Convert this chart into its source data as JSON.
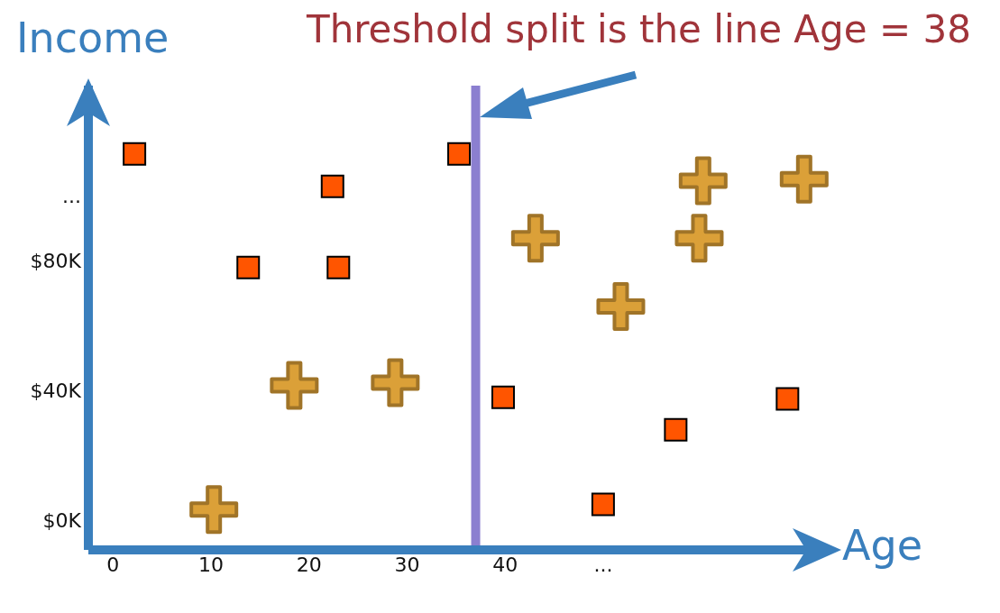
{
  "chart_data": {
    "type": "scatter",
    "title": "Threshold split is the line Age = 38",
    "xlabel": "Age",
    "ylabel": "Income",
    "xlim": [
      -2.5,
      73
    ],
    "xticks": [
      0,
      10,
      20,
      30,
      40,
      {
        "value": 50,
        "label": "..."
      }
    ],
    "ylim": [
      -9,
      134
    ],
    "yticks": [
      {
        "value": 0,
        "label": "$0K"
      },
      {
        "value": 40,
        "label": "$40K"
      },
      {
        "value": 80,
        "label": "$80K"
      },
      {
        "value": 100,
        "label": "..."
      }
    ],
    "grid": false,
    "legend": false,
    "ref_lines": [
      {
        "axis": "x",
        "value": 37,
        "color": "#8b7fd0"
      }
    ],
    "series": [
      {
        "color": "#ff5500",
        "marker": "square",
        "x": [
          2.2,
          22.4,
          13.8,
          23.0,
          35.3,
          39.8,
          57.4,
          68.8,
          50.0
        ],
        "values": [
          113,
          103,
          78,
          78,
          113,
          38,
          28,
          37.5,
          5
        ]
      },
      {
        "color": "#dba038",
        "marker": "cross",
        "x": [
          10.3,
          18.5,
          28.8,
          43.1,
          51.8,
          60.2,
          59.8,
          70.5
        ],
        "values": [
          3.4,
          41.7,
          42.5,
          87,
          66,
          104.7,
          87,
          105.2
        ]
      }
    ]
  }
}
